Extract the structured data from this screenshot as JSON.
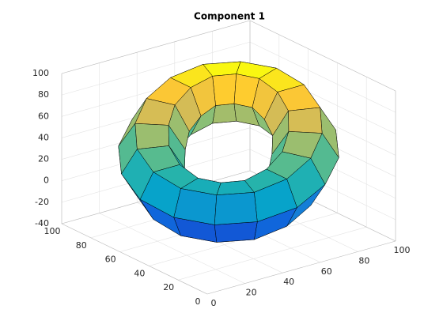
{
  "chart_data": {
    "type": "surface",
    "title": "Component 1",
    "x": [
      [
        97,
        93,
        83,
        68,
        50,
        32,
        17,
        7,
        3,
        7,
        17,
        32,
        50,
        68,
        83,
        93
      ],
      [
        90,
        87,
        78,
        65,
        50,
        35,
        22,
        13,
        10,
        13,
        22,
        35,
        50,
        65,
        78,
        87
      ],
      [
        76,
        74,
        68,
        60,
        50,
        40,
        32,
        26,
        24,
        26,
        32,
        40,
        50,
        60,
        68,
        74
      ],
      [
        69,
        68,
        63,
        57,
        50,
        43,
        37,
        32,
        31,
        32,
        37,
        43,
        50,
        57,
        63,
        68
      ],
      [
        76,
        74,
        68,
        60,
        50,
        40,
        32,
        26,
        24,
        26,
        32,
        40,
        50,
        60,
        68,
        74
      ],
      [
        90,
        87,
        78,
        65,
        50,
        35,
        22,
        13,
        10,
        13,
        22,
        35,
        50,
        65,
        78,
        87
      ]
    ],
    "y": [
      [
        50,
        68,
        83,
        93,
        97,
        93,
        83,
        68,
        50,
        32,
        17,
        7,
        3,
        7,
        17,
        32
      ],
      [
        50,
        65,
        78,
        87,
        90,
        87,
        78,
        65,
        50,
        35,
        22,
        13,
        10,
        13,
        22,
        35
      ],
      [
        50,
        60,
        68,
        74,
        76,
        74,
        68,
        60,
        50,
        40,
        32,
        26,
        24,
        26,
        32,
        40
      ],
      [
        50,
        57,
        63,
        68,
        69,
        68,
        63,
        57,
        50,
        43,
        37,
        32,
        31,
        32,
        37,
        43
      ],
      [
        50,
        60,
        68,
        74,
        76,
        74,
        68,
        60,
        50,
        40,
        32,
        26,
        24,
        26,
        32,
        40
      ],
      [
        50,
        65,
        78,
        87,
        90,
        87,
        78,
        65,
        50,
        35,
        22,
        13,
        10,
        13,
        22,
        35
      ]
    ],
    "z": [
      [
        56,
        63,
        65,
        63,
        56,
        46,
        35,
        24,
        14,
        7,
        5,
        7,
        14,
        24,
        35,
        46
      ],
      [
        78,
        85,
        87,
        85,
        78,
        68,
        57,
        46,
        36,
        29,
        27,
        29,
        36,
        46,
        57,
        68
      ],
      [
        78,
        85,
        87,
        85,
        78,
        68,
        57,
        46,
        36,
        29,
        27,
        29,
        36,
        46,
        57,
        68
      ],
      [
        56,
        63,
        65,
        63,
        56,
        46,
        35,
        24,
        14,
        7,
        5,
        7,
        14,
        24,
        35,
        46
      ],
      [
        34,
        41,
        43,
        41,
        34,
        24,
        13,
        2,
        -8,
        -15,
        -17,
        -15,
        -8,
        2,
        13,
        24
      ],
      [
        34,
        41,
        43,
        41,
        34,
        24,
        13,
        2,
        -8,
        -15,
        -17,
        -15,
        -8,
        2,
        13,
        24
      ]
    ],
    "xlim": [
      0,
      100
    ],
    "ylim": [
      0,
      100
    ],
    "zlim": [
      -40,
      100
    ],
    "xticks": [
      0,
      20,
      40,
      60,
      80,
      100
    ],
    "yticks": [
      0,
      20,
      40,
      60,
      80,
      100
    ],
    "zticks": [
      -40,
      -20,
      0,
      20,
      40,
      60,
      80,
      100
    ],
    "grid": true,
    "colormap": [
      "#352a87",
      "#0f5cdd",
      "#1481d6",
      "#06a4ca",
      "#2eb7a4",
      "#87bf77",
      "#d1bb59",
      "#fec832",
      "#f9fb0e"
    ],
    "edgecolor": "#000000"
  }
}
